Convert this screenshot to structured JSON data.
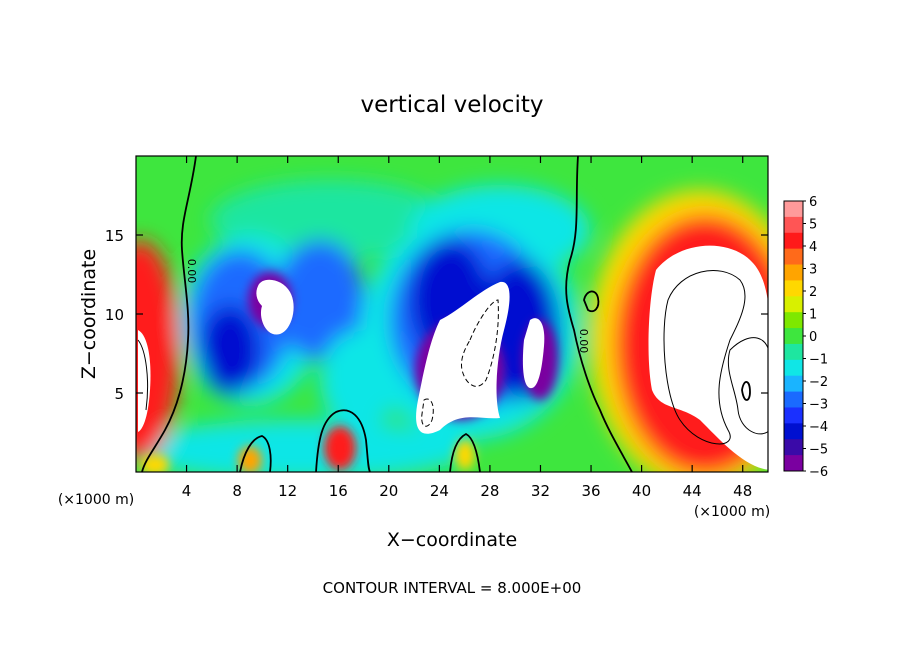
{
  "chart_data": {
    "type": "heatmap",
    "title": "vertical velocity",
    "xlabel": "X−coordinate",
    "ylabel": "Z−coordinate",
    "x_unit": "(×1000 m)",
    "x_unit_right": "(×1000 m)",
    "xlim": [
      0,
      50
    ],
    "ylim": [
      0,
      20
    ],
    "x_ticks": [
      4,
      8,
      12,
      16,
      20,
      24,
      28,
      32,
      36,
      40,
      44,
      48
    ],
    "x_tick_labels": [
      "4",
      "8",
      "12",
      "16",
      "20",
      "24",
      "28",
      "32",
      "36",
      "40",
      "44",
      "48"
    ],
    "y_ticks": [
      5,
      10,
      15
    ],
    "y_tick_labels": [
      "5",
      "10",
      "15"
    ],
    "colorbar": {
      "range": [
        -6,
        6
      ],
      "labels": [
        "6",
        "5",
        "4",
        "3",
        "2",
        "1",
        "0",
        "−1",
        "−2",
        "−3",
        "−4",
        "−5",
        "−6"
      ],
      "colors": [
        "#ff9a9a",
        "#ff5555",
        "#ff1a1a",
        "#ff6a1a",
        "#ffa400",
        "#ffd800",
        "#d8f000",
        "#7ee800",
        "#3ee63e",
        "#1ee6a0",
        "#10e6e6",
        "#1ab4ff",
        "#1a6aff",
        "#1a30ff",
        "#0010d0",
        "#3a0aa8",
        "#7a00a0"
      ]
    },
    "contour_labels": [
      "0.00",
      "0.00"
    ],
    "annotation": "CONTOUR INTERVAL = 8.000E+00"
  }
}
